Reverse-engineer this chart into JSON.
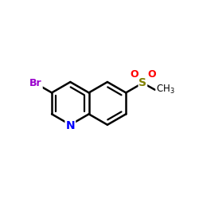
{
  "bg_color": "#ffffff",
  "bond_color": "#000000",
  "N_color": "#0000ff",
  "Br_color": "#9900cc",
  "S_color": "#808000",
  "O_color": "#ff0000",
  "C_color": "#000000",
  "figsize": [
    2.5,
    2.5
  ],
  "dpi": 100,
  "xlim": [
    0,
    10
  ],
  "ylim": [
    0,
    10
  ],
  "ring_r": 1.1,
  "lc": [
    3.5,
    4.8
  ],
  "bond_lw": 1.8,
  "inner_lw": 1.6
}
